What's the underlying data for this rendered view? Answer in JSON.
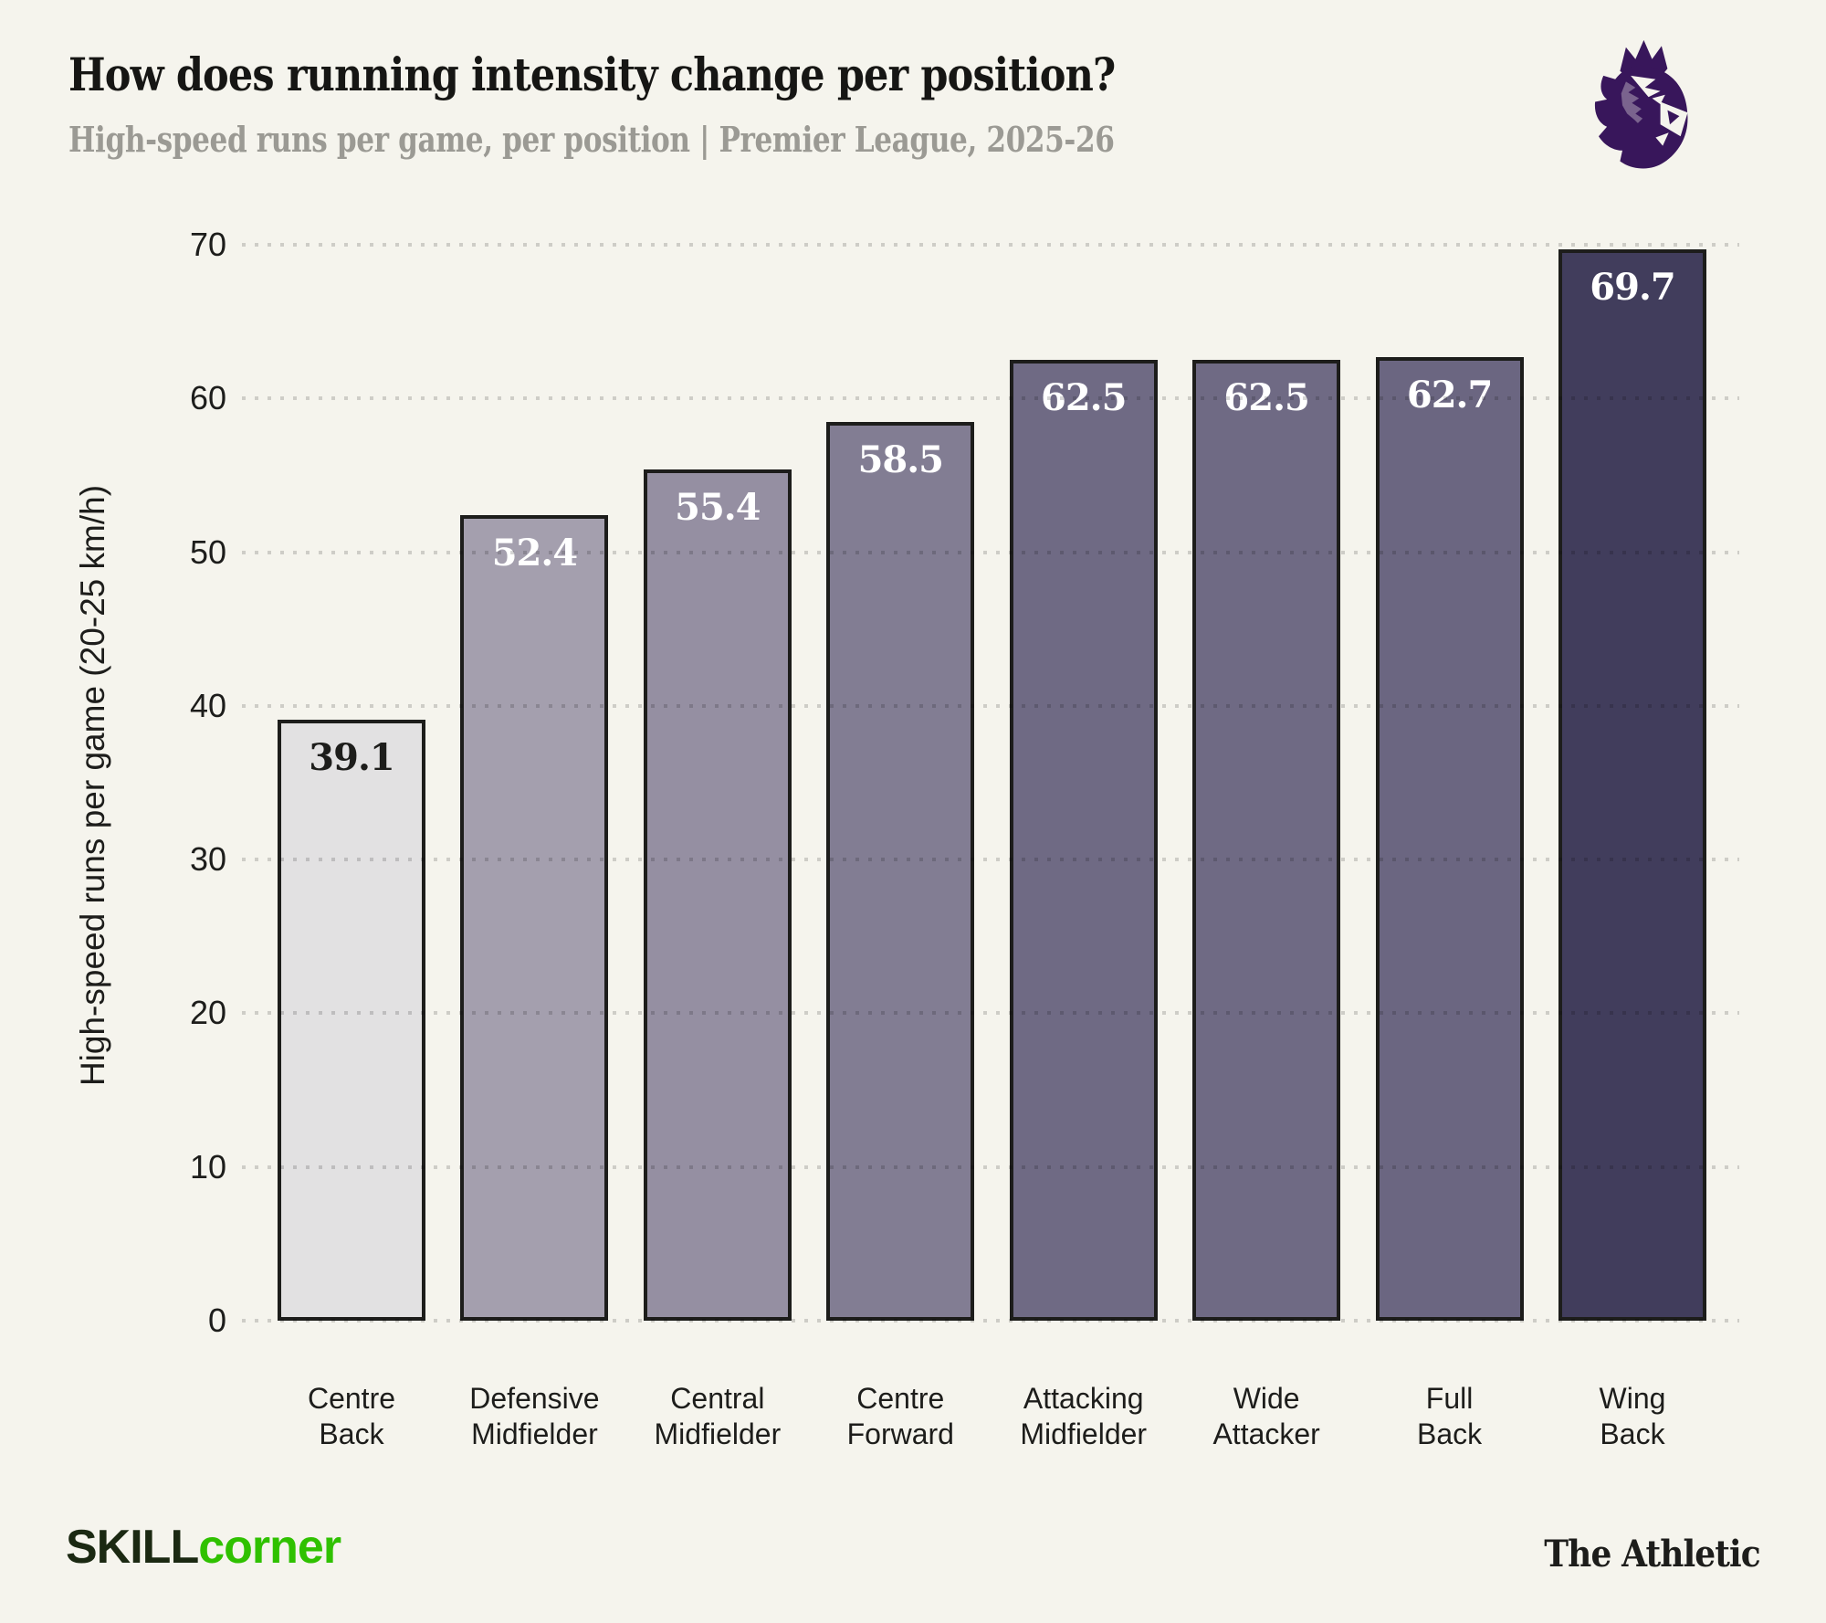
{
  "header": {
    "title": "How does running intensity change per position?",
    "subtitle": "High-speed runs per game, per position | Premier League, 2025-26"
  },
  "logo": {
    "name": "premier-league-lion",
    "color": "#38165b"
  },
  "chart_data": {
    "type": "bar",
    "title": "How does running intensity change per position?",
    "subtitle": "High-speed runs per game, per position | Premier League, 2025-26",
    "categories": [
      "Centre Back",
      "Defensive Midfielder",
      "Central Midfielder",
      "Centre Forward",
      "Attacking Midfielder",
      "Wide Attacker",
      "Full Back",
      "Wing Back"
    ],
    "category_lines": [
      [
        "Centre",
        "Back"
      ],
      [
        "Defensive",
        "Midfielder"
      ],
      [
        "Central",
        "Midfielder"
      ],
      [
        "Centre",
        "Forward"
      ],
      [
        "Attacking",
        "Midfielder"
      ],
      [
        "Wide",
        "Attacker"
      ],
      [
        "Full",
        "Back"
      ],
      [
        "Wing",
        "Back"
      ]
    ],
    "values": [
      39.1,
      52.4,
      55.4,
      58.5,
      62.5,
      62.5,
      62.7,
      69.7
    ],
    "value_labels": [
      "39.1",
      "52.4",
      "55.4",
      "58.5",
      "62.5",
      "62.5",
      "62.7",
      "69.7"
    ],
    "bar_colors": [
      "#e2e1e2",
      "#a49fae",
      "#958fa2",
      "#827d93",
      "#6f6a84",
      "#6f6a84",
      "#6b6681",
      "#413d5c"
    ],
    "value_label_colors": [
      "#1d1d1b",
      "#ffffff",
      "#ffffff",
      "#ffffff",
      "#ffffff",
      "#ffffff",
      "#ffffff",
      "#ffffff"
    ],
    "bar_outline_color": "#1d1d1b",
    "xlabel": "",
    "ylabel": "High-speed runs per game (20-25 km/h)",
    "ylim": [
      0,
      70
    ],
    "yticks": [
      0,
      10,
      20,
      30,
      40,
      50,
      60,
      70
    ],
    "ytick_labels": [
      "0",
      "10",
      "20",
      "30",
      "40",
      "50",
      "60",
      "70"
    ],
    "grid": "horizontal-dotted",
    "legend": "none"
  },
  "footer": {
    "skillcorner_part1": "SKILL",
    "skillcorner_part2": "corner",
    "skillcorner_part1_color": "#1b2912",
    "skillcorner_part2_color": "#2fc100",
    "athletic": "The Athletic"
  }
}
